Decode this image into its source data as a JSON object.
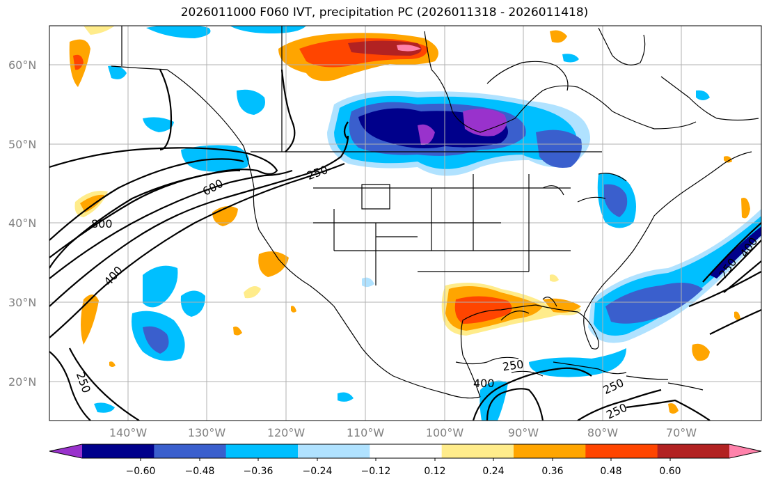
{
  "title": "2026011000 F060 IVT, precipitation PC (2026011318 - 2026011418)",
  "lat_labels": [
    "60°N",
    "50°N",
    "40°N",
    "30°N",
    "20°N"
  ],
  "lon_labels": [
    "140°W",
    "130°W",
    "120°W",
    "110°W",
    "100°W",
    "90°W",
    "80°W",
    "70°W"
  ],
  "contour_labels": [
    "250",
    "600",
    "800",
    "400",
    "250",
    "250",
    "400",
    "250",
    "250",
    "250",
    "400"
  ],
  "colorbar": {
    "ticks": [
      "−0.60",
      "−0.48",
      "−0.36",
      "−0.24",
      "−0.12",
      "0.12",
      "0.24",
      "0.36",
      "0.48",
      "0.60"
    ],
    "colors": [
      "#9932cc",
      "#00008b",
      "#3a5fcd",
      "#00bfff",
      "#b0e2ff",
      "#ffffff",
      "#ffec8b",
      "#ffa500",
      "#ff4500",
      "#b22222",
      "#ff82ab"
    ]
  },
  "map_colors": {
    "land_line": "#000000",
    "grid": "#b0b0b0",
    "ivt_contour": "#000000"
  }
}
